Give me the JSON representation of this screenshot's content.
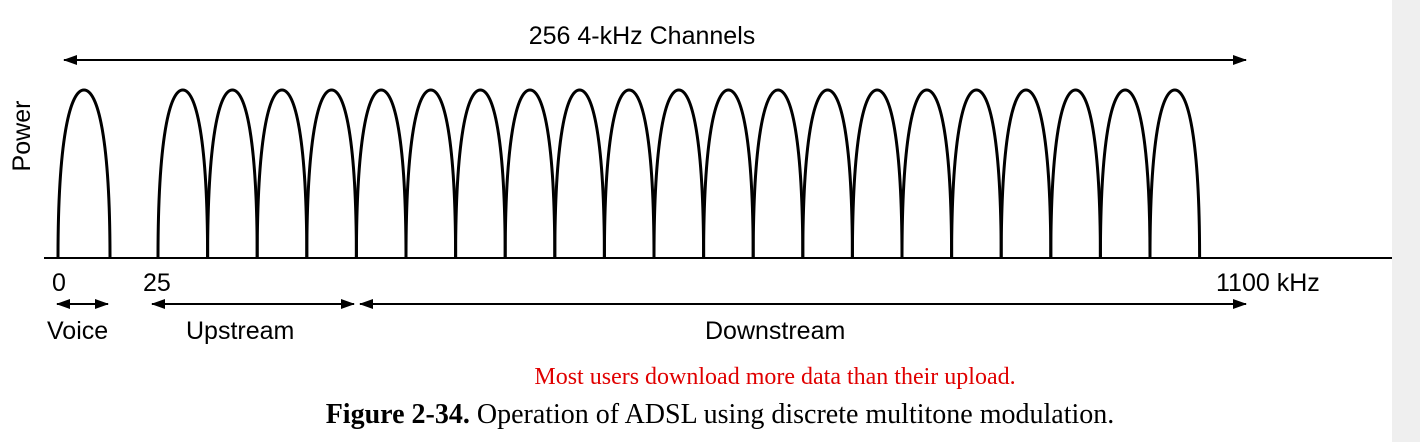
{
  "diagram": {
    "top_label": "256 4-kHz Channels",
    "y_axis_label": "Power",
    "tick_0": "0",
    "tick_25": "25",
    "tick_end": "1100 kHz",
    "band_voice": "Voice",
    "band_upstream": "Upstream",
    "band_downstream": "Downstream",
    "voice_channels": 1,
    "upstream_channels": 4,
    "downstream_channels": 17
  },
  "note": "Most users download more data than their upload.",
  "caption": {
    "number": "Figure 2-34.",
    "text": " Operation of ADSL using discrete multitone modulation."
  },
  "colors": {
    "line": "#000000",
    "note": "#e00000"
  }
}
